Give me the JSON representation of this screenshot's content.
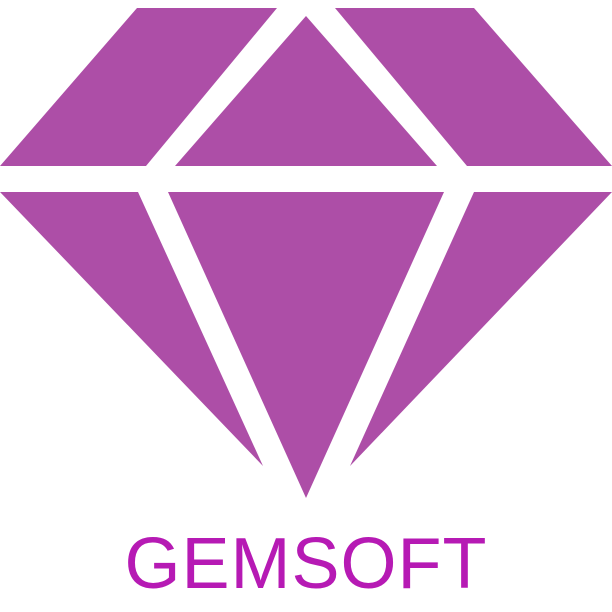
{
  "brand": {
    "name": "GEMSOFT",
    "logo_icon": "diamond-icon",
    "gem_color": "#ad4ea7",
    "text_color": "#b61ab4",
    "background_color": "#ffffff"
  }
}
